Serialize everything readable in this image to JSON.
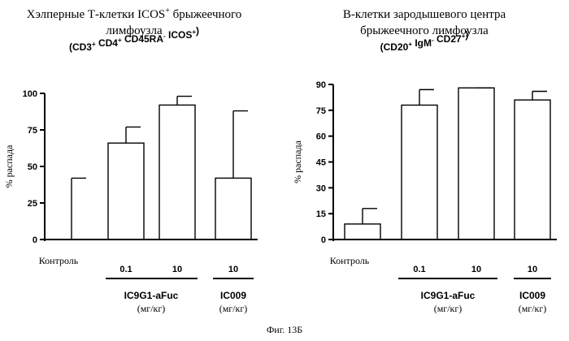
{
  "figure_caption": "Фиг. 13Б",
  "chart_data": [
    {
      "type": "bar",
      "title_line1": "Хэлперные Т-клетки ICOS",
      "title_line1_sup": "+",
      "title_line1_rest": " брыжеечного",
      "title_line2": "лимфоузла",
      "subtitle_parts": [
        {
          "t": "(CD3",
          "s": "+"
        },
        {
          "t": " CD4",
          "s": "+"
        },
        {
          "t": " CD45RA",
          "s": "-"
        },
        {
          "t": " ICOS",
          "s": "+"
        },
        {
          "t": ")",
          "s": ""
        }
      ],
      "ylabel": "% распада",
      "ylim": [
        0,
        100
      ],
      "yticks": [
        "0",
        "25",
        "50",
        "75",
        "100"
      ],
      "categories": [
        "Контроль",
        "0.1",
        "10",
        "10"
      ],
      "values": [
        0,
        66,
        92,
        42
      ],
      "errors": [
        42,
        11,
        6,
        46
      ],
      "groups": [
        {
          "name": "IC9G1-aFuc",
          "unit": "(мг/кг)"
        },
        {
          "name": "IC009",
          "unit": "(мг/кг)"
        }
      ]
    },
    {
      "type": "bar",
      "title_line1": "В-клетки зародышевого центра",
      "title_line1_sup": "",
      "title_line1_rest": "",
      "title_line2": "брыжеечного лимфоузла",
      "subtitle_parts": [
        {
          "t": "(CD20",
          "s": "+"
        },
        {
          "t": " IgM",
          "s": "-"
        },
        {
          "t": " CD27",
          "s": "+"
        },
        {
          "t": ")",
          "s": ""
        }
      ],
      "ylabel": "% распада",
      "ylim": [
        0,
        90
      ],
      "yticks": [
        "0",
        "15",
        "30",
        "45",
        "60",
        "75",
        "90"
      ],
      "categories": [
        "Контроль",
        "0.1",
        "10",
        "10"
      ],
      "values": [
        9,
        78,
        88,
        81
      ],
      "errors": [
        9,
        9,
        0,
        5
      ],
      "groups": [
        {
          "name": "IC9G1-aFuc",
          "unit": "(мг/кг)"
        },
        {
          "name": "IC009",
          "unit": "(мг/кг)"
        }
      ]
    }
  ]
}
